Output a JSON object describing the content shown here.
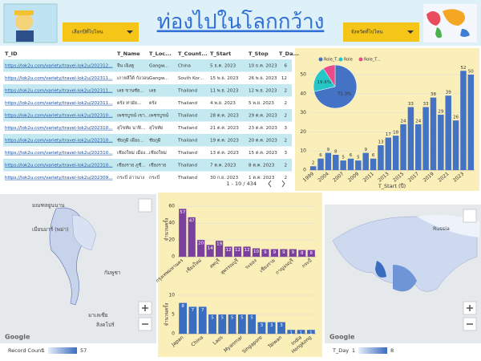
{
  "header": {
    "title": "ท่องไปในโลกกว้าง",
    "dropdowns": [
      "เลือกปีที่ไปไหน",
      "จังหวัดที่ไปไหน"
    ]
  },
  "table": {
    "columns": [
      "T_ID",
      "T_Name",
      "T_Loc...",
      "T_Count...",
      "T_Start",
      "T_Stop",
      "T_Da..."
    ],
    "rows": [
      [
        "https://lok2u.com/variety/travel-lok2u/202312...",
        "จีน เฉิงตู",
        "Gangw...",
        "China",
        "5 ธ.ค. 2023",
        "10 ธ.ค. 2023",
        6
      ],
      [
        "https://lok2u.com/variety/travel-lok2u/202311...",
        "เกาหลีใต้ กังวอน",
        "Gangw...",
        "South Kor...",
        "15 พ.ย. 2023",
        "26 พ.ย. 2023",
        12
      ],
      [
        "https://lok2u.com/variety/travel-lok2u/202311...",
        "เลย ขานชัย...",
        "เลย",
        "Thailand",
        "11 พ.ย. 2023",
        "12 พ.ย. 2023",
        2
      ],
      [
        "https://lok2u.com/variety/travel-lok2u/202311...",
        "ตรัง ท่ามัย...",
        "ตรัง",
        "Thailand",
        "4 พ.ย. 2023",
        "5 พ.ย. 2023",
        2
      ],
      [
        "https://lok2u.com/variety/travel-lok2u/202310...",
        "เพชรบูรณ์ เขา...",
        "เพชรบูรณ์",
        "Thailand",
        "28 ต.ค. 2023",
        "29 ต.ค. 2023",
        2
      ],
      [
        "https://lok2u.com/variety/travel-lok2u/202310...",
        "สุโขทัย นาฬิ...",
        "สุโขทัย",
        "Thailand",
        "21 ต.ค. 2023",
        "23 ต.ค. 2023",
        3
      ],
      [
        "https://lok2u.com/variety/travel-lok2u/202310...",
        "ชัยภูมิ เมือง...",
        "ชัยภูมิ",
        "Thailand",
        "19 ต.ค. 2023",
        "20 ต.ค. 2023",
        2
      ],
      [
        "https://lok2u.com/variety/travel-lok2u/202310...",
        "เชียงใหม่ เมือง...",
        "เชียงใหม่",
        "Thailand",
        "13 ต.ค. 2023",
        "15 ต.ค. 2023",
        3
      ],
      [
        "https://lok2u.com/variety/travel-lok2u/202310...",
        "เชียงราย ภูชี...",
        "เชียงราย",
        "Thailand",
        "7 ต.ค. 2023",
        "8 ต.ค. 2023",
        2
      ],
      [
        "https://lok2u.com/variety/travel-lok2u/202309...",
        "กระบี่ อ่าวนาง",
        "กระบี่",
        "Thailand",
        "30 ก.ย. 2023",
        "1 ต.ค. 2023",
        2
      ]
    ],
    "pagination": "1 - 10 / 434"
  },
  "chart_data": [
    {
      "type": "bar",
      "xlabel": "T_Start (ปี)",
      "color": "#4472c4",
      "categories": [
        "1999",
        null,
        "2004",
        null,
        "2007",
        null,
        "2009",
        null,
        "2011",
        null,
        "2013",
        null,
        "2015",
        null,
        "2017",
        null,
        "2019",
        null,
        "2021",
        null,
        "2023",
        null
      ],
      "values": [
        2,
        6,
        9,
        8,
        5,
        6,
        5,
        9,
        6,
        13,
        17,
        18,
        24,
        33,
        24,
        33,
        38,
        29,
        39,
        26,
        52,
        50
      ],
      "ylim": [
        0,
        58
      ],
      "yticks": [
        0,
        10,
        20,
        30,
        40,
        50
      ],
      "grid": true
    },
    {
      "type": "pie",
      "labels": [
        "Role_T...",
        "Role",
        "Role_T..."
      ],
      "colors": [
        "#4472c4",
        "#26c6c6",
        "#e84d8a"
      ],
      "values": [
        71.3,
        19.6,
        9.1
      ],
      "value_labels": [
        "71.3%",
        "19.6%",
        null
      ]
    },
    {
      "type": "bar",
      "ylabel": "จำนวนครั้ง",
      "color": "#7b3f9e",
      "categories": [
        "กรุงเทพมหานคร",
        null,
        "เชียงใหม่",
        null,
        "ลพบุรี",
        null,
        "สุพรรณบุรี",
        null,
        "ระยอง",
        null,
        "เชียงราย",
        null,
        "กาญจนบุรี",
        null,
        "กระบี่"
      ],
      "values": [
        57,
        47,
        20,
        14,
        19,
        12,
        12,
        12,
        10,
        9,
        9,
        9,
        9,
        8,
        8
      ],
      "ylim": [
        0,
        65
      ],
      "yticks": [
        0,
        20,
        40,
        60
      ],
      "grid": true
    },
    {
      "type": "bar",
      "ylabel": "จำนวนครั้ง",
      "color": "#3a6cc0",
      "categories": [
        "Japan",
        null,
        "China",
        null,
        "Laos",
        null,
        "Myanmar",
        null,
        "Singapore",
        null,
        "Taiwan",
        null,
        "India",
        "Hongkong"
      ],
      "values": [
        8,
        7,
        7,
        5,
        5,
        5,
        5,
        5,
        3,
        3,
        3,
        1,
        1,
        1
      ],
      "ylim": [
        0,
        10
      ],
      "yticks": [
        0,
        5,
        10
      ],
      "grid": true
    }
  ],
  "maps": [
    {
      "labels": [
        "มณฑลยูนนาน",
        "เมียนมาร์ (พม่า)",
        "กัมพูชา",
        "มาเลเซีย",
        "สิงคโปร์"
      ],
      "legend_title": "Record Count",
      "legend_min": 1,
      "legend_max": 57,
      "brand": "Google"
    },
    {
      "labels": [
        "Russia"
      ],
      "legend_title": "T_Day",
      "legend_min": 1,
      "legend_max": 8,
      "brand": "Google"
    }
  ]
}
